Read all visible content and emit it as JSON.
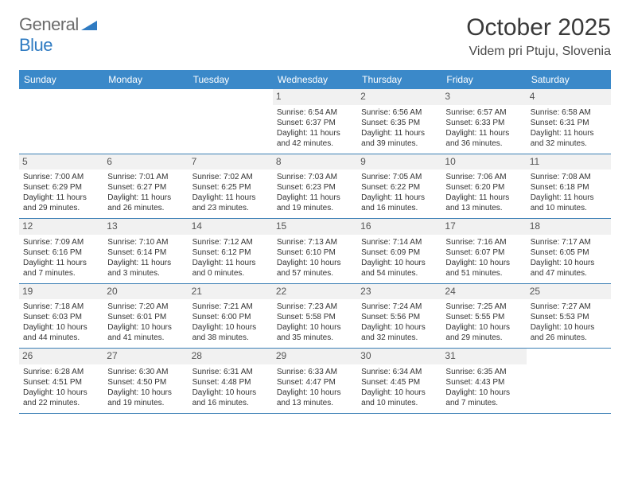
{
  "logo": {
    "general": "General",
    "blue": "Blue"
  },
  "title": "October 2025",
  "location": "Videm pri Ptuju, Slovenia",
  "colors": {
    "header_bg": "#3b89c9",
    "header_text": "#ffffff",
    "border": "#3b7fb5",
    "daynum_bg": "#f1f1f1",
    "text": "#3a3a3a",
    "logo_gray": "#6b6b6b",
    "logo_blue": "#2f7bc2"
  },
  "day_names": [
    "Sunday",
    "Monday",
    "Tuesday",
    "Wednesday",
    "Thursday",
    "Friday",
    "Saturday"
  ],
  "weeks": [
    [
      {
        "day": "",
        "sunrise": "",
        "sunset": "",
        "daylight": ""
      },
      {
        "day": "",
        "sunrise": "",
        "sunset": "",
        "daylight": ""
      },
      {
        "day": "",
        "sunrise": "",
        "sunset": "",
        "daylight": ""
      },
      {
        "day": "1",
        "sunrise": "Sunrise: 6:54 AM",
        "sunset": "Sunset: 6:37 PM",
        "daylight": "Daylight: 11 hours and 42 minutes."
      },
      {
        "day": "2",
        "sunrise": "Sunrise: 6:56 AM",
        "sunset": "Sunset: 6:35 PM",
        "daylight": "Daylight: 11 hours and 39 minutes."
      },
      {
        "day": "3",
        "sunrise": "Sunrise: 6:57 AM",
        "sunset": "Sunset: 6:33 PM",
        "daylight": "Daylight: 11 hours and 36 minutes."
      },
      {
        "day": "4",
        "sunrise": "Sunrise: 6:58 AM",
        "sunset": "Sunset: 6:31 PM",
        "daylight": "Daylight: 11 hours and 32 minutes."
      }
    ],
    [
      {
        "day": "5",
        "sunrise": "Sunrise: 7:00 AM",
        "sunset": "Sunset: 6:29 PM",
        "daylight": "Daylight: 11 hours and 29 minutes."
      },
      {
        "day": "6",
        "sunrise": "Sunrise: 7:01 AM",
        "sunset": "Sunset: 6:27 PM",
        "daylight": "Daylight: 11 hours and 26 minutes."
      },
      {
        "day": "7",
        "sunrise": "Sunrise: 7:02 AM",
        "sunset": "Sunset: 6:25 PM",
        "daylight": "Daylight: 11 hours and 23 minutes."
      },
      {
        "day": "8",
        "sunrise": "Sunrise: 7:03 AM",
        "sunset": "Sunset: 6:23 PM",
        "daylight": "Daylight: 11 hours and 19 minutes."
      },
      {
        "day": "9",
        "sunrise": "Sunrise: 7:05 AM",
        "sunset": "Sunset: 6:22 PM",
        "daylight": "Daylight: 11 hours and 16 minutes."
      },
      {
        "day": "10",
        "sunrise": "Sunrise: 7:06 AM",
        "sunset": "Sunset: 6:20 PM",
        "daylight": "Daylight: 11 hours and 13 minutes."
      },
      {
        "day": "11",
        "sunrise": "Sunrise: 7:08 AM",
        "sunset": "Sunset: 6:18 PM",
        "daylight": "Daylight: 11 hours and 10 minutes."
      }
    ],
    [
      {
        "day": "12",
        "sunrise": "Sunrise: 7:09 AM",
        "sunset": "Sunset: 6:16 PM",
        "daylight": "Daylight: 11 hours and 7 minutes."
      },
      {
        "day": "13",
        "sunrise": "Sunrise: 7:10 AM",
        "sunset": "Sunset: 6:14 PM",
        "daylight": "Daylight: 11 hours and 3 minutes."
      },
      {
        "day": "14",
        "sunrise": "Sunrise: 7:12 AM",
        "sunset": "Sunset: 6:12 PM",
        "daylight": "Daylight: 11 hours and 0 minutes."
      },
      {
        "day": "15",
        "sunrise": "Sunrise: 7:13 AM",
        "sunset": "Sunset: 6:10 PM",
        "daylight": "Daylight: 10 hours and 57 minutes."
      },
      {
        "day": "16",
        "sunrise": "Sunrise: 7:14 AM",
        "sunset": "Sunset: 6:09 PM",
        "daylight": "Daylight: 10 hours and 54 minutes."
      },
      {
        "day": "17",
        "sunrise": "Sunrise: 7:16 AM",
        "sunset": "Sunset: 6:07 PM",
        "daylight": "Daylight: 10 hours and 51 minutes."
      },
      {
        "day": "18",
        "sunrise": "Sunrise: 7:17 AM",
        "sunset": "Sunset: 6:05 PM",
        "daylight": "Daylight: 10 hours and 47 minutes."
      }
    ],
    [
      {
        "day": "19",
        "sunrise": "Sunrise: 7:18 AM",
        "sunset": "Sunset: 6:03 PM",
        "daylight": "Daylight: 10 hours and 44 minutes."
      },
      {
        "day": "20",
        "sunrise": "Sunrise: 7:20 AM",
        "sunset": "Sunset: 6:01 PM",
        "daylight": "Daylight: 10 hours and 41 minutes."
      },
      {
        "day": "21",
        "sunrise": "Sunrise: 7:21 AM",
        "sunset": "Sunset: 6:00 PM",
        "daylight": "Daylight: 10 hours and 38 minutes."
      },
      {
        "day": "22",
        "sunrise": "Sunrise: 7:23 AM",
        "sunset": "Sunset: 5:58 PM",
        "daylight": "Daylight: 10 hours and 35 minutes."
      },
      {
        "day": "23",
        "sunrise": "Sunrise: 7:24 AM",
        "sunset": "Sunset: 5:56 PM",
        "daylight": "Daylight: 10 hours and 32 minutes."
      },
      {
        "day": "24",
        "sunrise": "Sunrise: 7:25 AM",
        "sunset": "Sunset: 5:55 PM",
        "daylight": "Daylight: 10 hours and 29 minutes."
      },
      {
        "day": "25",
        "sunrise": "Sunrise: 7:27 AM",
        "sunset": "Sunset: 5:53 PM",
        "daylight": "Daylight: 10 hours and 26 minutes."
      }
    ],
    [
      {
        "day": "26",
        "sunrise": "Sunrise: 6:28 AM",
        "sunset": "Sunset: 4:51 PM",
        "daylight": "Daylight: 10 hours and 22 minutes."
      },
      {
        "day": "27",
        "sunrise": "Sunrise: 6:30 AM",
        "sunset": "Sunset: 4:50 PM",
        "daylight": "Daylight: 10 hours and 19 minutes."
      },
      {
        "day": "28",
        "sunrise": "Sunrise: 6:31 AM",
        "sunset": "Sunset: 4:48 PM",
        "daylight": "Daylight: 10 hours and 16 minutes."
      },
      {
        "day": "29",
        "sunrise": "Sunrise: 6:33 AM",
        "sunset": "Sunset: 4:47 PM",
        "daylight": "Daylight: 10 hours and 13 minutes."
      },
      {
        "day": "30",
        "sunrise": "Sunrise: 6:34 AM",
        "sunset": "Sunset: 4:45 PM",
        "daylight": "Daylight: 10 hours and 10 minutes."
      },
      {
        "day": "31",
        "sunrise": "Sunrise: 6:35 AM",
        "sunset": "Sunset: 4:43 PM",
        "daylight": "Daylight: 10 hours and 7 minutes."
      },
      {
        "day": "",
        "sunrise": "",
        "sunset": "",
        "daylight": ""
      }
    ]
  ]
}
